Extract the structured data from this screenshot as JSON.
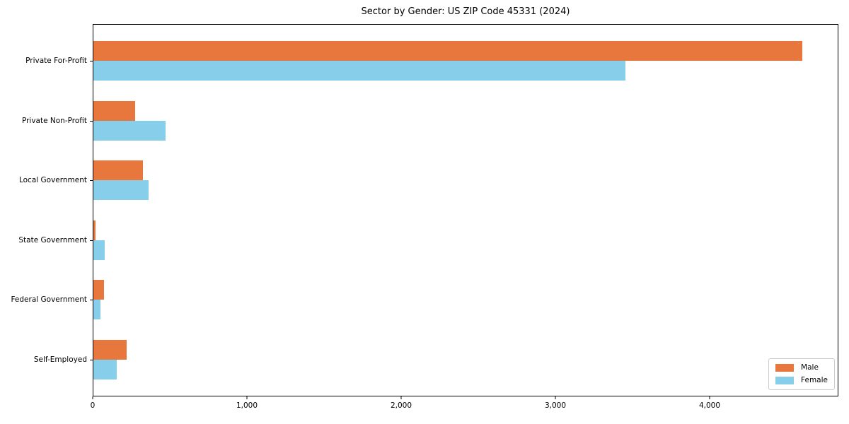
{
  "chart_data": {
    "type": "bar",
    "orientation": "horizontal",
    "title": "Sector by Gender: US ZIP Code 45331 (2024)",
    "categories": [
      "Private For-Profit",
      "Private Non-Profit",
      "Local Government",
      "State Government",
      "Federal Government",
      "Self-Employed"
    ],
    "series": [
      {
        "name": "Male",
        "color": "#e8773d",
        "values": [
          4605,
          272,
          320,
          13,
          68,
          215
        ]
      },
      {
        "name": "Female",
        "color": "#87ceeb",
        "values": [
          3455,
          469,
          358,
          73,
          47,
          152
        ]
      }
    ],
    "xlabel": "",
    "ylabel": "",
    "xlim": [
      0,
      4835
    ],
    "xticks": [
      0,
      1000,
      2000,
      3000,
      4000
    ],
    "xtick_labels": [
      "0",
      "1,000",
      "2,000",
      "3,000",
      "4,000"
    ],
    "grid": false,
    "legend_position": "lower right",
    "plot_border_color": "#000000",
    "background_color": "#ffffff"
  }
}
